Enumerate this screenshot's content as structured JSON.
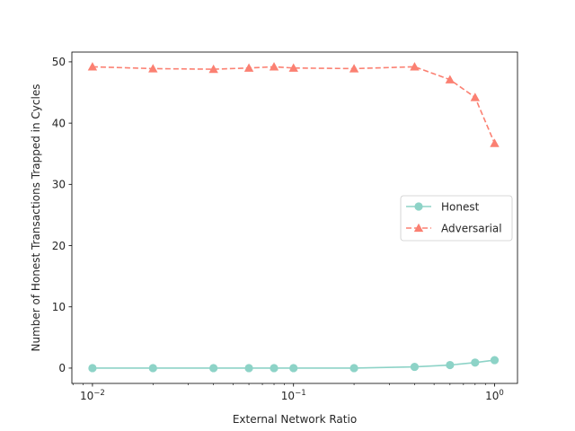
{
  "chart_data": {
    "type": "line",
    "title": "",
    "xlabel": "External Network Ratio",
    "ylabel": "Number of Honest Transactions Trapped in Cycles",
    "x_scale": "log",
    "xlim": [
      0.0079,
      1.3
    ],
    "ylim": [
      -2.5,
      51.6
    ],
    "x_ticks": [
      {
        "value": 0.01,
        "base": "10",
        "exp": "−2"
      },
      {
        "value": 0.1,
        "base": "10",
        "exp": "−1"
      },
      {
        "value": 1,
        "base": "10",
        "exp": "0"
      }
    ],
    "y_ticks": [
      0,
      10,
      20,
      30,
      40,
      50
    ],
    "grid": false,
    "legend_position": "center-right",
    "x": [
      0.01,
      0.02,
      0.04,
      0.06,
      0.08,
      0.1,
      0.2,
      0.4,
      0.6,
      0.8,
      1.0
    ],
    "series": [
      {
        "name": "Honest",
        "color": "#8dd3c7",
        "marker": "circle",
        "line_style": "solid",
        "values": [
          0,
          0,
          0,
          0,
          0,
          0,
          0,
          0.2,
          0.5,
          0.9,
          1.3
        ]
      },
      {
        "name": "Adversarial",
        "color": "#fb8072",
        "marker": "triangle",
        "line_style": "dashed",
        "values": [
          49.2,
          48.9,
          48.8,
          49.0,
          49.2,
          49.0,
          48.9,
          49.2,
          47.1,
          44.2,
          36.7
        ]
      }
    ]
  }
}
